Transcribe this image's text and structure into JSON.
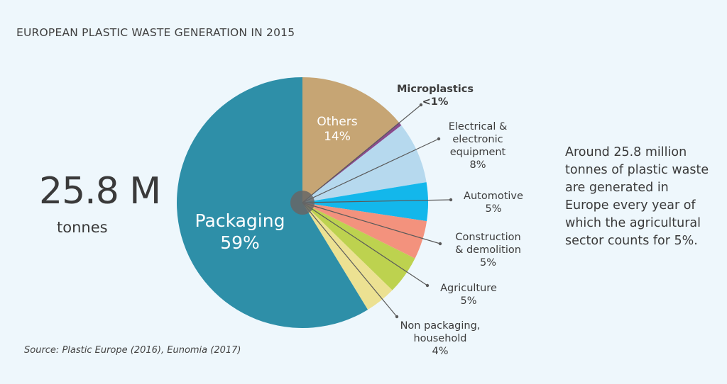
{
  "title": "EUROPEAN PLASTIC WASTE GENERATION IN 2015",
  "total_value": "25.8 M",
  "total_unit": "tonnes",
  "description": "Around 25.8 million tonnes of plastic waste are generated in Europe every year of which the agricultural sector counts for 5%.",
  "source": "Source: Plastic Europe (2016), Eunomia (2017)",
  "chart_data": {
    "type": "pie",
    "title": "EUROPEAN PLASTIC WASTE GENERATION IN 2015",
    "start": "12 o'clock, clockwise",
    "slices": [
      {
        "name": "Others",
        "value": 14,
        "label": "14%",
        "color": "#c6a574"
      },
      {
        "name": "Microplastics",
        "value": 0.5,
        "label": "<1%",
        "color": "#8a4b8c"
      },
      {
        "name": "Electrical & electronic equipment",
        "value": 8,
        "label": "8%",
        "color": "#b6d9ee"
      },
      {
        "name": "Automotive",
        "value": 5,
        "label": "5%",
        "color": "#13b7eb"
      },
      {
        "name": "Construction & demolition",
        "value": 5,
        "label": "5%",
        "color": "#f3927d"
      },
      {
        "name": "Agriculture",
        "value": 5,
        "label": "5%",
        "color": "#bdd24f"
      },
      {
        "name": "Non packaging, household",
        "value": 4,
        "label": "4%",
        "color": "#ece192"
      },
      {
        "name": "Packaging",
        "value": 59,
        "label": "59%",
        "color": "#2e8fa8"
      }
    ],
    "display_names": [
      "Others",
      "Microplastics",
      "Electrical &\nelectronic\nequipment",
      "Automotive",
      "Construction\n& demolition",
      "Agriculture",
      "Non packaging,\nhousehold",
      "Packaging"
    ]
  }
}
